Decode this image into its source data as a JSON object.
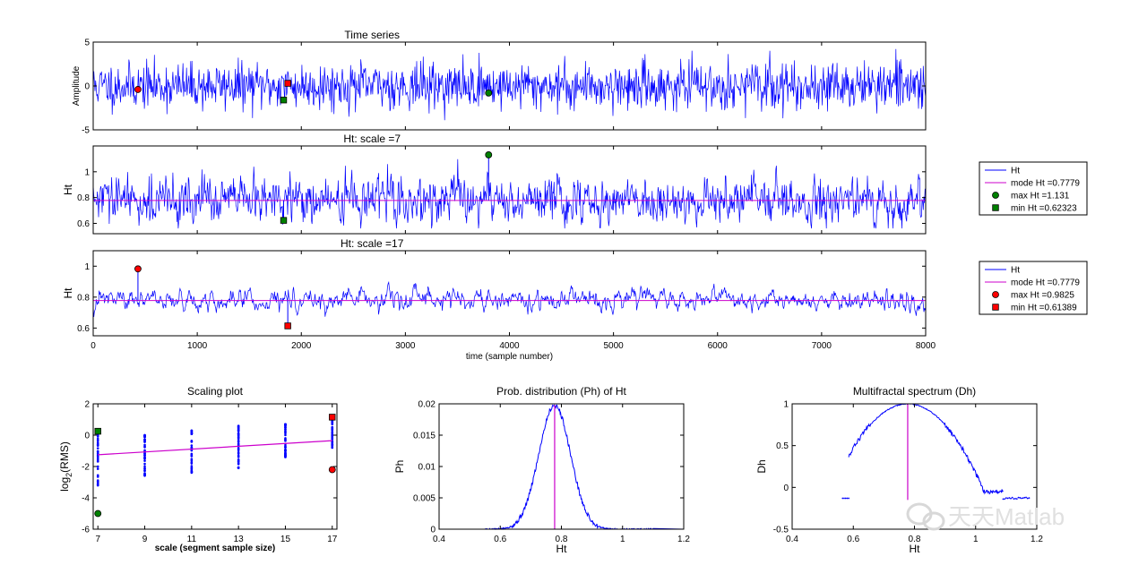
{
  "chart_data": [
    {
      "id": "ts",
      "type": "line",
      "title": "Time series",
      "ylabel": "Amplitude",
      "xlim": [
        0,
        8000
      ],
      "ylim": [
        -5,
        5
      ],
      "yticks": [
        "-5",
        "0",
        "5"
      ],
      "yticks_v": [
        -5,
        0,
        5
      ],
      "series": [
        {
          "color": "#0000ff",
          "n": 8000,
          "mean": 0,
          "amp": 1.3
        }
      ],
      "markers": [
        {
          "x": 430,
          "y": -0.4,
          "shape": "circle",
          "color": "#ff0000"
        },
        {
          "x": 1870,
          "y": 0.3,
          "shape": "square",
          "color": "#ff0000"
        },
        {
          "x": 1830,
          "y": -1.6,
          "shape": "square",
          "color": "#008000"
        },
        {
          "x": 3800,
          "y": -0.8,
          "shape": "circle",
          "color": "#008000"
        }
      ]
    },
    {
      "id": "h7",
      "type": "line",
      "title": "Ht: scale =7",
      "ylabel": "Ht",
      "xlim": [
        0,
        8000
      ],
      "ylim": [
        0.52,
        1.2
      ],
      "yticks": [
        "0.6",
        "0.8",
        "1"
      ],
      "yticks_v": [
        0.6,
        0.8,
        1.0
      ],
      "series": [
        {
          "color": "#0000ff",
          "n": 8000,
          "mean": 0.7779,
          "amp": 0.06
        }
      ],
      "mode_line": 0.7779,
      "markers": [
        {
          "x": 3800,
          "y": 1.131,
          "shape": "circle",
          "color": "#008000",
          "stem": true
        },
        {
          "x": 1830,
          "y": 0.62323,
          "shape": "square",
          "color": "#008000",
          "stem": true
        }
      ],
      "legend": [
        {
          "label": "Ht",
          "kind": "line",
          "color": "#0000ff"
        },
        {
          "label": "mode Ht =0.7779",
          "kind": "line",
          "color": "#cc00cc"
        },
        {
          "label": "max Ht =1.131",
          "kind": "circle",
          "color": "#008000"
        },
        {
          "label": "min Ht =0.62323",
          "kind": "square",
          "color": "#008000"
        }
      ]
    },
    {
      "id": "h17",
      "type": "line",
      "title": "Ht: scale =17",
      "ylabel": "Ht",
      "xlabel": "time (sample number)",
      "xlim": [
        0,
        8000
      ],
      "ylim": [
        0.55,
        1.1
      ],
      "yticks": [
        "0.6",
        "0.8",
        "1"
      ],
      "yticks_v": [
        0.6,
        0.8,
        1.0
      ],
      "xticks": [
        "0",
        "1000",
        "2000",
        "3000",
        "4000",
        "5000",
        "6000",
        "7000",
        "8000"
      ],
      "xticks_v": [
        0,
        1000,
        2000,
        3000,
        4000,
        5000,
        6000,
        7000,
        8000
      ],
      "series": [
        {
          "color": "#0000ff",
          "n": 8000,
          "mean": 0.7779,
          "amp": 0.04
        }
      ],
      "mode_line": 0.7779,
      "markers": [
        {
          "x": 430,
          "y": 0.9825,
          "shape": "circle",
          "color": "#ff0000",
          "stem": true
        },
        {
          "x": 1870,
          "y": 0.61389,
          "shape": "square",
          "color": "#ff0000",
          "stem": true
        }
      ],
      "legend": [
        {
          "label": "Ht",
          "kind": "line",
          "color": "#0000ff"
        },
        {
          "label": "mode Ht =0.7779",
          "kind": "line",
          "color": "#cc00cc"
        },
        {
          "label": "max Ht =0.9825",
          "kind": "circle",
          "color": "#ff0000"
        },
        {
          "label": "min Ht =0.61389",
          "kind": "square",
          "color": "#ff0000"
        }
      ]
    },
    {
      "id": "scale",
      "type": "scatter",
      "title": "Scaling plot",
      "ylabel": "log",
      "ylabel_sub": "2",
      "ylabel_rest": "(RMS)",
      "xlabel": "scale (segment sample size)",
      "xlim": [
        6.8,
        17.2
      ],
      "ylim": [
        -6,
        2
      ],
      "xticks": [
        "7",
        "9",
        "11",
        "13",
        "15",
        "17"
      ],
      "xticks_v": [
        7,
        9,
        11,
        13,
        15,
        17
      ],
      "yticks": [
        "-6",
        "-4",
        "-2",
        "0",
        "2"
      ],
      "yticks_v": [
        -6,
        -4,
        -2,
        0,
        2
      ],
      "columns": [
        {
          "x": 7,
          "min": -3.2,
          "max": 0.2
        },
        {
          "x": 9,
          "min": -2.6,
          "max": 0.0
        },
        {
          "x": 11,
          "min": -2.4,
          "max": 0.3
        },
        {
          "x": 13,
          "min": -2.1,
          "max": 0.6
        },
        {
          "x": 15,
          "min": -1.4,
          "max": 0.7
        },
        {
          "x": 17,
          "min": -0.8,
          "max": 1.1
        }
      ],
      "fit": {
        "x": [
          7,
          17
        ],
        "y": [
          -1.25,
          -0.35
        ]
      },
      "markers": [
        {
          "x": 7,
          "y": 0.25,
          "shape": "square",
          "color": "#008000"
        },
        {
          "x": 7,
          "y": -5.0,
          "shape": "circle",
          "color": "#008000"
        },
        {
          "x": 17,
          "y": 1.15,
          "shape": "square",
          "color": "#ff0000"
        },
        {
          "x": 17,
          "y": -2.2,
          "shape": "circle",
          "color": "#ff0000"
        }
      ]
    },
    {
      "id": "ph",
      "type": "line",
      "title": "Prob. distribution (Ph) of Ht",
      "ylabel": "Ph",
      "xlabel": "Ht",
      "xlim": [
        0.4,
        1.2
      ],
      "ylim": [
        0,
        0.02
      ],
      "xticks": [
        "0.4",
        "0.6",
        "0.8",
        "1",
        "1.2"
      ],
      "xticks_v": [
        0.4,
        0.6,
        0.8,
        1.0,
        1.2
      ],
      "yticks": [
        "0",
        "0.005",
        "0.01",
        "0.015",
        "0.02"
      ],
      "yticks_v": [
        0,
        0.005,
        0.01,
        0.015,
        0.02
      ],
      "curve": {
        "center": 0.7779,
        "sigma": 0.052,
        "peak": 0.0198,
        "from": 0.55,
        "to": 1.1
      },
      "mode_line": 0.7779
    },
    {
      "id": "dh",
      "type": "line",
      "title": "Multifractal spectrum (Dh)",
      "ylabel": "Dh",
      "xlabel": "Ht",
      "xlim": [
        0.4,
        1.2
      ],
      "ylim": [
        -0.5,
        1
      ],
      "xticks": [
        "0.4",
        "0.6",
        "0.8",
        "1",
        "1.2"
      ],
      "xticks_v": [
        0.4,
        0.6,
        0.8,
        1.0,
        1.2
      ],
      "yticks": [
        "-0.5",
        "0",
        "0.5",
        "1"
      ],
      "yticks_v": [
        -0.5,
        0,
        0.5,
        1
      ],
      "curve": {
        "center": 0.7779,
        "from": 0.585,
        "to": 1.09,
        "sigma": 0.125
      },
      "mode_line": 0.7779
    }
  ],
  "watermark": "天天Matlab"
}
